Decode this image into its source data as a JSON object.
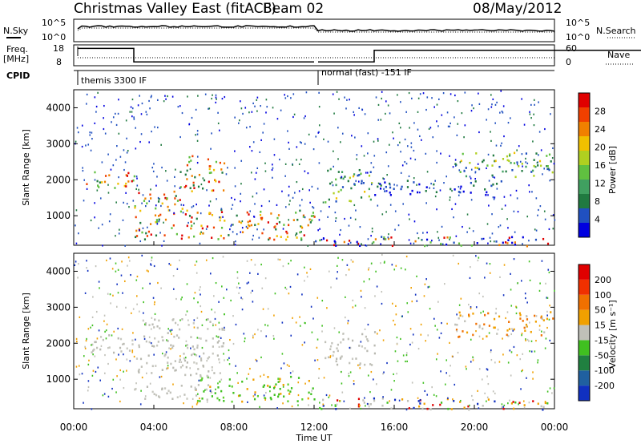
{
  "header": {
    "title": "Christmas Valley East (fitACF)",
    "beam": "Beam 02",
    "date": "08/May/2012"
  },
  "strip_panels": {
    "sky_label": "N.Sky",
    "search_label": "N.Search",
    "noise_ticks_left": [
      "10^5",
      "10^0"
    ],
    "noise_ticks_right": [
      "10^5",
      "10^0"
    ],
    "freq_label_line1": "Freq.",
    "freq_label_line2": "[MHz]",
    "freq_ticks": [
      "18",
      "8"
    ],
    "nave_label": "Nave",
    "nave_ticks": [
      "60",
      "0"
    ],
    "cpid_label": "CPID",
    "cpid_1": "themis 3300 IF",
    "cpid_2": "normal (fast) -151 IF"
  },
  "chart_data": [
    {
      "type": "heatmap",
      "panel": "power",
      "ylabel": "Slant Range [km]",
      "y_ticks": [
        1000,
        2000,
        3000,
        4000
      ],
      "ylim": [
        180,
        4500
      ],
      "colorbar_label": "Power [dB]",
      "colorbar_ticks": [
        "28",
        "24",
        "20",
        "16",
        "12",
        "8",
        "4"
      ],
      "colorbar_colors": [
        "#0000e0",
        "#2050c0",
        "#207a40",
        "#40a060",
        "#60c040",
        "#b0d020",
        "#f0c000",
        "#f08000",
        "#f04000",
        "#e00000"
      ],
      "scatter_regions": [
        {
          "t0": 0.6,
          "t1": 3.0,
          "r0": 1750,
          "r1": 2300,
          "level": "high"
        },
        {
          "t0": 3.0,
          "t1": 5.5,
          "r0": 1100,
          "r1": 1700,
          "level": "high"
        },
        {
          "t0": 5.0,
          "t1": 7.5,
          "r0": 1700,
          "r1": 2700,
          "level": "high"
        },
        {
          "t0": 3.0,
          "t1": 12.0,
          "r0": 350,
          "r1": 1200,
          "level": "high"
        },
        {
          "t0": 12.5,
          "t1": 15.0,
          "r0": 1400,
          "r1": 2400,
          "level": "mid"
        },
        {
          "t0": 15.0,
          "t1": 21.5,
          "r0": 1600,
          "r1": 2000,
          "level": "low"
        },
        {
          "t0": 19.0,
          "t1": 24.0,
          "r0": 2100,
          "r1": 2800,
          "level": "mid"
        },
        {
          "t0": 12.0,
          "t1": 24.0,
          "r0": 180,
          "r1": 450,
          "level": "mixed"
        }
      ]
    },
    {
      "type": "heatmap",
      "panel": "velocity",
      "ylabel": "Slant Range [km]",
      "y_ticks": [
        1000,
        2000,
        3000,
        4000
      ],
      "ylim": [
        180,
        4500
      ],
      "colorbar_label": "Velocity [m s⁻¹]",
      "colorbar_ticks": [
        "200",
        "100",
        "50",
        "15",
        "-15",
        "-50",
        "-100",
        "-200"
      ],
      "colorbar_colors": [
        "#1030c0",
        "#2060a0",
        "#208040",
        "#40c020",
        "#c0c0b8",
        "#f0a000",
        "#f07000",
        "#f03000",
        "#e00000"
      ],
      "scatter_regions": [
        {
          "t0": 0.6,
          "t1": 3.0,
          "r0": 1750,
          "r1": 2300,
          "level": "grey"
        },
        {
          "t0": 3.0,
          "t1": 7.5,
          "r0": 1100,
          "r1": 2700,
          "level": "grey"
        },
        {
          "t0": 6.0,
          "t1": 12.0,
          "r0": 400,
          "r1": 1100,
          "level": "green"
        },
        {
          "t0": 3.0,
          "t1": 7.0,
          "r0": 450,
          "r1": 900,
          "level": "grey"
        },
        {
          "t0": 12.5,
          "t1": 15.0,
          "r0": 1400,
          "r1": 2400,
          "level": "grey"
        },
        {
          "t0": 19.0,
          "t1": 24.0,
          "r0": 2200,
          "r1": 2900,
          "level": "orange"
        },
        {
          "t0": 12.0,
          "t1": 24.0,
          "r0": 180,
          "r1": 500,
          "level": "mixed"
        }
      ]
    }
  ],
  "x_axis": {
    "ticks": [
      "00:00",
      "04:00",
      "08:00",
      "12:00",
      "16:00",
      "20:00",
      "00:00"
    ],
    "xlabel": "Time UT",
    "xlim": [
      0,
      24
    ]
  }
}
